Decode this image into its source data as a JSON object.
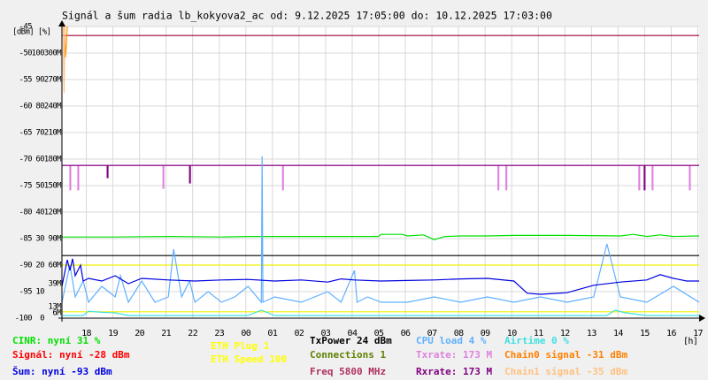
{
  "chart_data": {
    "type": "line",
    "title": "Signál a šum radia lb_kokyova2_ac od: 9.12.2025 17:05:00 do: 10.12.2025 17:03:00",
    "ylabel": "[dBm] [%]",
    "xlabel": "[h]",
    "grid": true,
    "xlim": [
      0,
      23.967
    ],
    "xticks": [
      {
        "value": 0.917,
        "label": "18"
      },
      {
        "value": 1.917,
        "label": "19"
      },
      {
        "value": 2.917,
        "label": "20"
      },
      {
        "value": 3.917,
        "label": "21"
      },
      {
        "value": 4.917,
        "label": "22"
      },
      {
        "value": 5.917,
        "label": "23"
      },
      {
        "value": 6.917,
        "label": "00"
      },
      {
        "value": 7.917,
        "label": "01"
      },
      {
        "value": 8.917,
        "label": "02"
      },
      {
        "value": 9.917,
        "label": "03"
      },
      {
        "value": 10.917,
        "label": "04"
      },
      {
        "value": 11.917,
        "label": "05"
      },
      {
        "value": 12.917,
        "label": "06"
      },
      {
        "value": 13.917,
        "label": "07"
      },
      {
        "value": 14.917,
        "label": "08"
      },
      {
        "value": 15.917,
        "label": "09"
      },
      {
        "value": 16.917,
        "label": "10"
      },
      {
        "value": 17.917,
        "label": "11"
      },
      {
        "value": 18.917,
        "label": "12"
      },
      {
        "value": 19.917,
        "label": "13"
      },
      {
        "value": 20.917,
        "label": "14"
      },
      {
        "value": 21.917,
        "label": "15"
      },
      {
        "value": 22.917,
        "label": "16"
      },
      {
        "value": 23.917,
        "label": "17"
      }
    ],
    "ylim": [
      -100,
      -45
    ],
    "yticks": [
      -100,
      -95,
      -90,
      -85,
      -80,
      -75,
      -70,
      -65,
      -60,
      -55,
      -50,
      -45
    ],
    "y2lim": [
      0,
      110
    ],
    "y2ticks": [
      0,
      10,
      20,
      30,
      40,
      50,
      60,
      70,
      80,
      90,
      100
    ],
    "y3lim": [
      0,
      330000000
    ],
    "y3ticks": [
      {
        "value": 60000000,
        "label": "60M"
      },
      {
        "value": 90000000,
        "label": "90M"
      },
      {
        "value": 120000000,
        "label": "120M"
      },
      {
        "value": 150000000,
        "label": "150M"
      },
      {
        "value": 180000000,
        "label": "180M"
      },
      {
        "value": 210000000,
        "label": "210M"
      },
      {
        "value": 240000000,
        "label": "240M"
      },
      {
        "value": 270000000,
        "label": "270M"
      },
      {
        "value": 300000000,
        "label": "300M"
      }
    ],
    "annotations": [
      {
        "text": "39M",
        "value": 39000000,
        "color": "#e090e0"
      },
      {
        "text": "13M",
        "value": 13000000,
        "color": "#e090e0"
      },
      {
        "text": "6M",
        "value": 6000000,
        "color": "#e090e0"
      }
    ],
    "series": [
      {
        "color": "#a00030",
        "x": [
          0,
          23.967
        ],
        "values": [
          -46.7,
          -46.7
        ]
      },
      {
        "color": "#e080e0",
        "x": [
          0,
          0.3,
          0.3,
          0.33,
          0.33,
          0.6,
          0.6,
          0.63,
          0.63,
          3.8,
          3.8,
          3.83,
          3.83,
          8.3,
          8.3,
          8.33,
          8.33,
          16.4,
          16.4,
          16.43,
          16.43,
          16.7,
          16.7,
          16.73,
          16.73,
          21.7,
          21.7,
          21.73,
          21.73,
          22.2,
          22.2,
          22.23,
          22.23,
          23.6,
          23.6,
          23.63,
          23.63,
          23.967
        ],
        "values": [
          -71.2,
          -71.2,
          -75.8,
          -75.8,
          -71.2,
          -71.2,
          -75.8,
          -75.8,
          -71.2,
          -71.2,
          -75.5,
          -75.5,
          -71.2,
          -71.2,
          -75.8,
          -75.8,
          -71.2,
          -71.2,
          -75.8,
          -75.8,
          -71.2,
          -71.2,
          -75.8,
          -75.8,
          -71.2,
          -71.2,
          -75.8,
          -75.8,
          -71.2,
          -71.2,
          -75.8,
          -75.8,
          -71.2,
          -71.2,
          -75.8,
          -75.8,
          -71.2,
          -71.2
        ]
      },
      {
        "color": "#800080",
        "x": [
          0,
          1.7,
          1.7,
          1.73,
          1.73,
          4.8,
          4.8,
          4.83,
          4.83,
          21.9,
          21.9,
          21.93,
          21.93,
          23.967
        ],
        "values": [
          -71.2,
          -71.2,
          -73.5,
          -73.5,
          -71.2,
          -71.2,
          -74.5,
          -74.5,
          -71.2,
          -71.2,
          -75.8,
          -75.8,
          -71.2,
          -71.2
        ]
      },
      {
        "color": "#00e000",
        "x": [
          0,
          2,
          4,
          6,
          7,
          11,
          11.9,
          12,
          12.8,
          13,
          13.6,
          14,
          14.4,
          15,
          16,
          17,
          19,
          21,
          21.5,
          22,
          22.5,
          23,
          23.967
        ],
        "values": [
          -84.7,
          -84.7,
          -84.6,
          -84.7,
          -84.6,
          -84.6,
          -84.6,
          -84.2,
          -84.2,
          -84.5,
          -84.3,
          -85.2,
          -84.6,
          -84.5,
          -84.5,
          -84.4,
          -84.4,
          -84.5,
          -84.2,
          -84.6,
          -84.3,
          -84.6,
          -84.5
        ]
      },
      {
        "color": "#000000",
        "x": [
          0,
          23.967
        ],
        "values": [
          -88.2,
          -88.2
        ]
      },
      {
        "color": "#f0f000",
        "x": [
          0,
          23.967
        ],
        "values": [
          -90,
          -90
        ]
      },
      {
        "color": "#f0f000",
        "x": [
          0,
          23.967
        ],
        "values": [
          -98.8,
          -98.8
        ]
      },
      {
        "color": "#60b0ff",
        "x": [
          0,
          0.3,
          0.5,
          0.8,
          1,
          1.5,
          2,
          2.2,
          2.5,
          3,
          3.5,
          4,
          4.2,
          4.5,
          4.8,
          5,
          5.5,
          6,
          6.5,
          7,
          7.5,
          7.53,
          7.56,
          8,
          9,
          10,
          10.5,
          11,
          11.1,
          11.5,
          12,
          13,
          14,
          15,
          16,
          17,
          18,
          19,
          20,
          20.5,
          21,
          22,
          23,
          23.967
        ],
        "values": [
          -97,
          -90,
          -96,
          -93,
          -97,
          -94,
          -96,
          -92,
          -97,
          -93,
          -97,
          -96,
          -87,
          -96,
          -93,
          -97,
          -95,
          -97,
          -96,
          -94,
          -97,
          -69.5,
          -97,
          -96,
          -97,
          -95,
          -97,
          -91,
          -97,
          -96,
          -97,
          -97,
          -96,
          -97,
          -96,
          -97,
          -96,
          -97,
          -96,
          -86,
          -96,
          -97,
          -94,
          -97
        ]
      },
      {
        "color": "#0000e0",
        "x": [
          0,
          0.2,
          0.3,
          0.4,
          0.5,
          0.7,
          0.8,
          1,
          1.5,
          2,
          2.5,
          3,
          4,
          5,
          6,
          7,
          8,
          9,
          10,
          10.5,
          11,
          12,
          13,
          14,
          15,
          16,
          17,
          17.5,
          18,
          19,
          20,
          21,
          22,
          22.5,
          23,
          23.5,
          23.967
        ],
        "values": [
          -94,
          -89,
          -91,
          -88.8,
          -92,
          -90,
          -93,
          -92.5,
          -93,
          -92,
          -93.5,
          -92.5,
          -92.8,
          -93,
          -92.8,
          -92.7,
          -93,
          -92.8,
          -93.2,
          -92.6,
          -92.8,
          -93,
          -92.9,
          -92.8,
          -92.6,
          -92.5,
          -93,
          -95.3,
          -95.5,
          -95.2,
          -93.8,
          -93.2,
          -92.8,
          -91.8,
          -92.5,
          -93,
          -93
        ]
      },
      {
        "color": "#40e0e0",
        "x": [
          0,
          0.8,
          1,
          1.5,
          2,
          2.5,
          3,
          7,
          7.5,
          8,
          12,
          18,
          20.5,
          20.8,
          21.2,
          22,
          23.967
        ],
        "values": [
          -99.5,
          -99.5,
          -98.7,
          -98.9,
          -99,
          -99.5,
          -99.5,
          -99.5,
          -98.5,
          -99.5,
          -99.5,
          -99.5,
          -99.5,
          -98.5,
          -99,
          -99.5,
          -99.5
        ]
      },
      {
        "color": "#ff9000",
        "x": [
          0.1,
          0.13,
          0.16,
          0.2
        ],
        "values": [
          -45,
          -50.8,
          -49,
          -45
        ]
      },
      {
        "color": "#ffc080",
        "x": [
          0.05,
          0.08,
          0.11
        ],
        "values": [
          -45,
          -57.5,
          -45
        ]
      }
    ],
    "legend": [
      [
        {
          "text": "CINR: nyní 31 %",
          "color": "#00e000"
        },
        {
          "text": "Signál: nyní -28 dBm",
          "color": "#ff0000"
        },
        {
          "text": "Šum: nyní -93 dBm",
          "color": "#0000e0"
        }
      ],
      [
        {
          "text": "ETH Plug 1",
          "color": "#ffff00"
        },
        {
          "text": "ETH Speed 100",
          "color": "#ffff00"
        }
      ],
      [
        {
          "text": "TxPower 24 dBm",
          "color": "#000000"
        },
        {
          "text": "Connections 1",
          "color": "#608000"
        },
        {
          "text": "Freq 5800 MHz",
          "color": "#b03060"
        }
      ],
      [
        {
          "text": "CPU load 4 %",
          "color": "#60b0ff"
        },
        {
          "text": "Txrate: 173 M",
          "color": "#e080e0"
        },
        {
          "text": "Rxrate: 173 M",
          "color": "#800080"
        }
      ],
      [
        {
          "text": "Airtime 0 %",
          "color": "#40e0e0"
        },
        {
          "text": "Chain0 signal -31 dBm",
          "color": "#ff8000"
        },
        {
          "text": "Chain1 signal -35 dBm",
          "color": "#ffc080"
        }
      ]
    ]
  }
}
